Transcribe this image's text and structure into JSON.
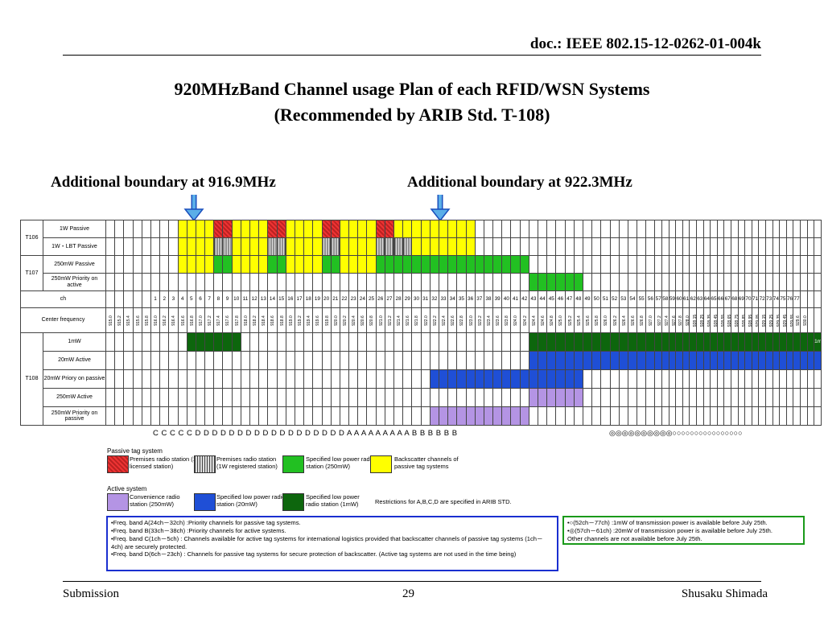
{
  "header": {
    "doc": "doc.: IEEE 802.15-12-0262-01-004k"
  },
  "title": {
    "line1": "920MHzBand Channel usage Plan of each RFID/WSN Systems",
    "line2": "(Recommended by ARIB Std. T-108)"
  },
  "boundaries": {
    "left": "Additional boundary at 916.9MHz",
    "right": "Additional boundary at 922.3MHz"
  },
  "table": {
    "rows": [
      {
        "group": "T106",
        "label": "1W Passive"
      },
      {
        "group": "",
        "label": "1W・LBT Passive"
      },
      {
        "group": "T107",
        "label": "250mW Passive"
      },
      {
        "group": "",
        "label": "250mW Priority on active"
      },
      {
        "group": "",
        "label": "ch"
      },
      {
        "group": "",
        "label": "Center frequency"
      },
      {
        "group": "T108",
        "label": "1mW"
      },
      {
        "group": "",
        "label": "20mW Active"
      },
      {
        "group": "",
        "label": "20mW Priory on passive"
      },
      {
        "group": "",
        "label": "250mW Active"
      },
      {
        "group": "",
        "label": "250mW Priority on passive"
      }
    ],
    "channels": [
      "1",
      "2",
      "3",
      "4",
      "5",
      "6",
      "7",
      "8",
      "9",
      "10",
      "11",
      "12",
      "13",
      "14",
      "15",
      "16",
      "17",
      "18",
      "19",
      "20",
      "21",
      "22",
      "23",
      "24",
      "25",
      "26",
      "27",
      "28",
      "29",
      "30",
      "31",
      "32",
      "33",
      "34",
      "35",
      "36",
      "37",
      "38",
      "39",
      "40",
      "41",
      "42",
      "43",
      "44",
      "45",
      "46",
      "47",
      "48",
      "49",
      "50",
      "51",
      "52",
      "53",
      "54",
      "55",
      "56",
      "57",
      "58",
      "59",
      "60",
      "61",
      "62",
      "63",
      "64",
      "65",
      "66",
      "67",
      "68",
      "69",
      "70",
      "71",
      "72",
      "73",
      "74",
      "75",
      "76",
      "77"
    ],
    "frequencies": [
      "915.0",
      "915.2",
      "915.4",
      "915.6",
      "915.8",
      "916.0",
      "916.2",
      "916.4",
      "916.6",
      "916.8",
      "917.0",
      "917.2",
      "917.4",
      "917.6",
      "917.8",
      "918.0",
      "918.2",
      "918.4",
      "918.6",
      "918.8",
      "919.0",
      "919.2",
      "919.4",
      "919.6",
      "919.8",
      "920.0",
      "920.2",
      "920.4",
      "920.6",
      "920.8",
      "921.0",
      "921.2",
      "921.4",
      "921.6",
      "921.8",
      "922.0",
      "922.2",
      "922.4",
      "922.6",
      "922.8",
      "923.0",
      "923.2",
      "923.4",
      "923.6",
      "923.8",
      "924.0",
      "924.2",
      "924.4",
      "924.6",
      "924.8",
      "925.0",
      "925.2",
      "925.4",
      "925.6",
      "925.8",
      "926.0",
      "926.2",
      "926.4",
      "926.6",
      "926.8",
      "927.0",
      "927.2",
      "927.4",
      "927.6",
      "927.8",
      "928.0",
      "928.15",
      "928.25",
      "928.35",
      "928.45",
      "928.55",
      "928.65",
      "928.75",
      "928.85",
      "928.95",
      "929.05",
      "929.15",
      "929.25",
      "929.35",
      "929.45",
      "929.55",
      "929.6",
      "930.0"
    ],
    "t108_label": "1mW"
  },
  "band_letters": "C C C C C D D D D D D D D D D D D D D D D D D A A A A A A A A A B B B B B B",
  "circle_marks": "◎◎◎◎◎◎◎◎◎◎○○○○○○○○○○○○○○○○",
  "legend": {
    "passive_title": "Passive tag system",
    "passive_items": [
      {
        "text": "Premises radio station (1W licensed station)",
        "color": "#cc2222"
      },
      {
        "text": "Premises radio station (1W registered station)",
        "color": "#777777"
      },
      {
        "text": "Specified low power radio station (250mW)",
        "color": "#22c022"
      },
      {
        "text": "Backscatter channels of passive tag systems",
        "color": "#ffff00"
      }
    ],
    "active_title": "Active system",
    "active_items": [
      {
        "text": "Convenience radio station (250mW)",
        "color": "#b494e4"
      },
      {
        "text": "Specified low power radio station (20mW)",
        "color": "#1f4fd6"
      },
      {
        "text": "Specified low power radio station (1mW)",
        "color": "#0d660d"
      }
    ],
    "restriction_note": "Restrictions for A,B,C,D are specified in ARIB STD."
  },
  "notes_blue": [
    "•Freq. band A(24ch－32ch) :Priority channels for passive tag systems.",
    "•Freq. band B(33ch－38ch) :Priority channels for active systems.",
    "•Freq. band C(1ch－5ch) : Channels available for active tag systems for international logistics provided that backscatter channels of passive tag systems (1ch－4ch) are securely protected.",
    "•Freq. band D(6ch－23ch) : Channels for passive tag systems for secure protection of backscatter. (Active tag systems are not used in the time being)"
  ],
  "notes_green": [
    "•○(52ch－77ch) :1mW of transmission power is available before July 25th.",
    "•◎(57ch－61ch) :20mW of transmission power is available before July 25th.",
    "Other channels are not available before July 25th."
  ],
  "footer": {
    "left": "Submission",
    "page": "29",
    "right": "Shusaku Shimada"
  }
}
